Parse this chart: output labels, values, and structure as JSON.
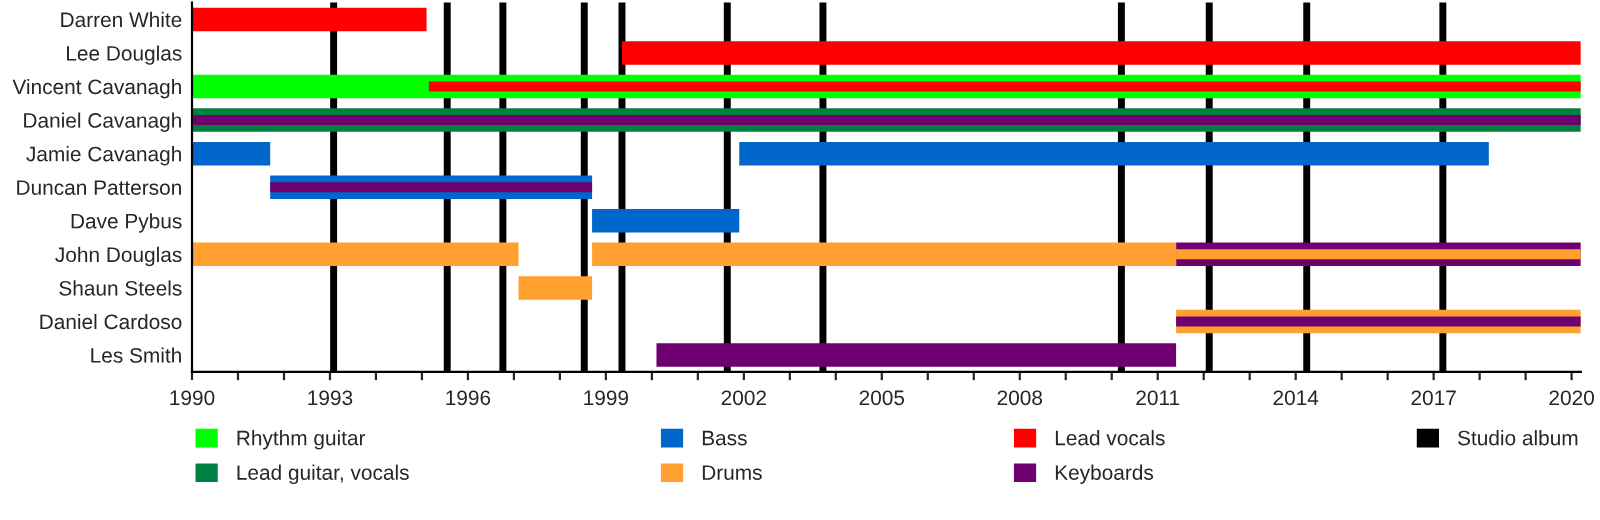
{
  "chart_data": {
    "type": "bar",
    "orientation": "horizontal",
    "categories": [
      "Darren White",
      "Lee Douglas",
      "Vincent Cavanagh",
      "Daniel Cavanagh",
      "Jamie Cavanagh",
      "Duncan Patterson",
      "Dave Pybus",
      "John Douglas",
      "Shaun Steels",
      "Daniel Cardoso",
      "Les Smith"
    ],
    "series": [
      {
        "name": "Rhythm guitar",
        "color": "#00ff00",
        "base": [
          null,
          null,
          1990,
          null,
          null,
          null,
          null,
          null,
          null,
          null,
          null
        ],
        "values": [
          null,
          null,
          30.2,
          null,
          null,
          null,
          null,
          null,
          null,
          null,
          null
        ]
      },
      {
        "name": "Lead guitar, vocals",
        "color": "#008040",
        "base": [
          null,
          null,
          null,
          1990,
          null,
          null,
          null,
          null,
          null,
          null,
          null
        ],
        "values": [
          null,
          null,
          null,
          30.2,
          null,
          null,
          null,
          null,
          null,
          null,
          null
        ]
      },
      {
        "name": "Bass",
        "color": "#0066cc",
        "base": [
          null,
          null,
          null,
          null,
          1990,
          1991.7,
          1998.7,
          null,
          null,
          null,
          null
        ],
        "values": [
          null,
          null,
          null,
          null,
          1.7,
          7.0,
          3.2,
          null,
          null,
          null,
          null
        ]
      },
      {
        "name": "Drums",
        "color": "#ffa030",
        "base": [
          null,
          null,
          null,
          null,
          null,
          null,
          null,
          1990,
          1997.1,
          2011.4,
          null
        ],
        "values": [
          null,
          null,
          null,
          null,
          null,
          null,
          null,
          7.1,
          1.6,
          8.8,
          null
        ]
      },
      {
        "name": "Lead vocals",
        "color": "#ff0000",
        "base": [
          1990,
          1999.35,
          1995.15,
          null,
          null,
          null,
          null,
          null,
          null,
          null,
          null
        ],
        "values": [
          5.1,
          20.85,
          25.05,
          null,
          null,
          null,
          null,
          null,
          null,
          null,
          null
        ]
      },
      {
        "name": "Keyboards",
        "color": "#6f006f",
        "base": [
          null,
          null,
          null,
          1990,
          null,
          1991.7,
          null,
          2011.4,
          null,
          2011.4,
          2000.1
        ],
        "values": [
          null,
          null,
          null,
          30.2,
          null,
          7.0,
          null,
          8.8,
          null,
          8.8,
          11.3
        ]
      },
      {
        "color": "#0066cc",
        "base": [
          null,
          null,
          null,
          null,
          2001.9,
          null,
          null,
          null,
          null,
          null,
          null
        ],
        "values": [
          null,
          null,
          null,
          null,
          16.3,
          null,
          null,
          null,
          null,
          null,
          null
        ]
      },
      {
        "color": "#ffa030",
        "base": [
          null,
          null,
          null,
          null,
          null,
          null,
          null,
          1998.7,
          null,
          null,
          null
        ],
        "values": [
          null,
          null,
          null,
          null,
          null,
          null,
          null,
          12.7,
          null,
          null,
          null
        ]
      },
      {
        "color": "#ffa030",
        "base": [
          null,
          null,
          null,
          null,
          null,
          null,
          null,
          2011.4,
          null,
          null,
          null
        ],
        "values": [
          null,
          null,
          null,
          null,
          null,
          null,
          null,
          8.8,
          null,
          null,
          null
        ]
      }
    ],
    "xlim": [
      1990,
      2020.2
    ],
    "xticks": [
      1990,
      {
        "value": 1991,
        "label": null
      },
      {
        "value": 1992,
        "label": null
      },
      1993,
      {
        "value": 1994,
        "label": null
      },
      {
        "value": 1995,
        "label": null
      },
      1996,
      {
        "value": 1997,
        "label": null
      },
      {
        "value": 1998,
        "label": null
      },
      1999,
      {
        "value": 2000,
        "label": null
      },
      {
        "value": 2001,
        "label": null
      },
      2002,
      {
        "value": 2003,
        "label": null
      },
      {
        "value": 2004,
        "label": null
      },
      2005,
      {
        "value": 2006,
        "label": null
      },
      {
        "value": 2007,
        "label": null
      },
      2008,
      {
        "value": 2009,
        "label": null
      },
      {
        "value": 2010,
        "label": null
      },
      2011,
      {
        "value": 2012,
        "label": null
      },
      {
        "value": 2013,
        "label": null
      },
      2014,
      {
        "value": 2015,
        "label": null
      },
      {
        "value": 2016,
        "label": null
      },
      2017,
      {
        "value": 2018,
        "label": null
      },
      {
        "value": 2019,
        "label": null
      },
      2020
    ],
    "ref_lines": [
      {
        "axis": "x",
        "value": 1993.08,
        "label": "Studio album",
        "color": "#000000"
      },
      {
        "axis": "x",
        "value": 1995.55,
        "color": "#000000"
      },
      {
        "axis": "x",
        "value": 1996.76,
        "color": "#000000"
      },
      {
        "axis": "x",
        "value": 1998.53,
        "color": "#000000"
      },
      {
        "axis": "x",
        "value": 1999.35,
        "color": "#000000"
      },
      {
        "axis": "x",
        "value": 2001.64,
        "color": "#000000"
      },
      {
        "axis": "x",
        "value": 2003.72,
        "color": "#000000"
      },
      {
        "axis": "x",
        "value": 2010.21,
        "color": "#000000"
      },
      {
        "axis": "x",
        "value": 2012.12,
        "color": "#000000"
      },
      {
        "axis": "x",
        "value": 2014.24,
        "color": "#000000"
      },
      {
        "axis": "x",
        "value": 2017.2,
        "color": "#000000"
      }
    ],
    "grid": false,
    "legend": "bottom"
  }
}
